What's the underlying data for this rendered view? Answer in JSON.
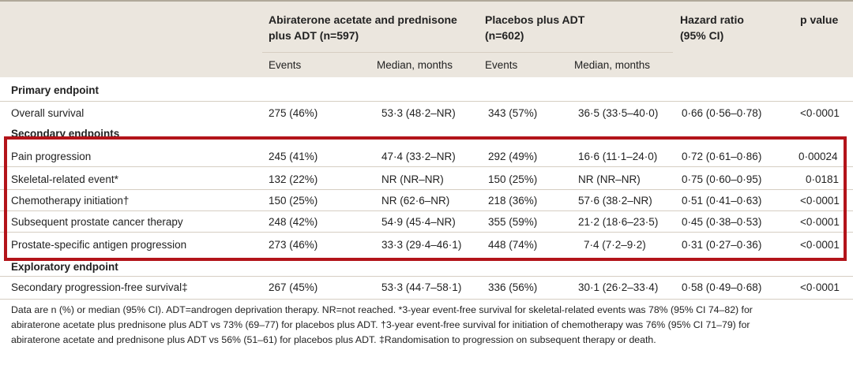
{
  "header": {
    "group1": "Abiraterone acetate and prednisone plus ADT (n=597)",
    "group1_line1": "Abiraterone acetate and prednisone",
    "group1_line2": "plus ADT (n=597)",
    "group2_line1": "Placebos plus ADT",
    "group2_line2": "(n=602)",
    "hr_line1": "Hazard ratio",
    "hr_line2": "(95% CI)",
    "pvalue": "p value",
    "sub_events_1": "Events",
    "sub_median_1": "Median, months",
    "sub_events_2": "Events",
    "sub_median_2": "Median, months"
  },
  "sections": {
    "primary": "Primary endpoint",
    "secondary": "Secondary endpoints",
    "exploratory": "Exploratory endpoint"
  },
  "rows": [
    {
      "endpoint": "Overall survival",
      "events1": "275 (46%)",
      "median1": "53·3 (48·2–NR)",
      "events2": "343 (57%)",
      "median2": "36·5 (33·5–40·0)",
      "hr": "0·66 (0·56–0·78)",
      "p": "<0·0001"
    },
    {
      "endpoint": "Pain progression",
      "events1": "245 (41%)",
      "median1": "47·4 (33·2–NR)",
      "events2": "292 (49%)",
      "median2": "16·6 (11·1–24·0)",
      "hr": "0·72 (0·61–0·86)",
      "p": "0·00024"
    },
    {
      "endpoint": "Skeletal-related event*",
      "events1": "132 (22%)",
      "median1": "NR (NR–NR)",
      "events2": "150 (25%)",
      "median2": "NR (NR–NR)",
      "hr": "0·75 (0·60–0·95)",
      "p": "0·0181"
    },
    {
      "endpoint": "Chemotherapy initiation†",
      "events1": "150 (25%)",
      "median1": "NR (62·6–NR)",
      "events2": "218 (36%)",
      "median2": "57·6 (38·2–NR)",
      "hr": "0·51 (0·41–0·63)",
      "p": "<0·0001"
    },
    {
      "endpoint": "Subsequent prostate cancer therapy",
      "events1": "248 (42%)",
      "median1": "54·9 (45·4–NR)",
      "events2": "355 (59%)",
      "median2": "21·2 (18·6–23·5)",
      "hr": "0·45 (0·38–0·53)",
      "p": "<0·0001"
    },
    {
      "endpoint": "Prostate-specific antigen progression",
      "events1": "273 (46%)",
      "median1": "33·3 (29·4–46·1)",
      "events2": "448 (74%)",
      "median2": "7·4 (7·2–9·2)",
      "hr": "0·31 (0·27–0·36)",
      "p": "<0·0001"
    },
    {
      "endpoint": "Secondary progression-free survival‡",
      "events1": "267 (45%)",
      "median1": "53·3 (44·7–58·1)",
      "events2": "336 (56%)",
      "median2": "30·1 (26·2–33·4)",
      "hr": "0·58 (0·49–0·68)",
      "p": "<0·0001"
    }
  ],
  "footnote": {
    "line1": "Data are n (%) or median (95% CI). ADT=androgen deprivation therapy. NR=not reached. *3-year event-free survival for skeletal-related events was 78% (95% CI 74–82) for",
    "line2": "abiraterone acetate plus prednisone plus ADT vs 73% (69–77) for placebos plus ADT. †3-year event-free survival for initiation of chemotherapy was 76% (95% CI 71–79) for",
    "line3": "abiraterone acetate and prednisone plus ADT vs 56% (51–61) for placebos plus ADT. ‡Randomisation to progression on subsequent therapy or death."
  },
  "colors": {
    "header_bg": "#ebe6de",
    "highlight": "#b3141a"
  }
}
